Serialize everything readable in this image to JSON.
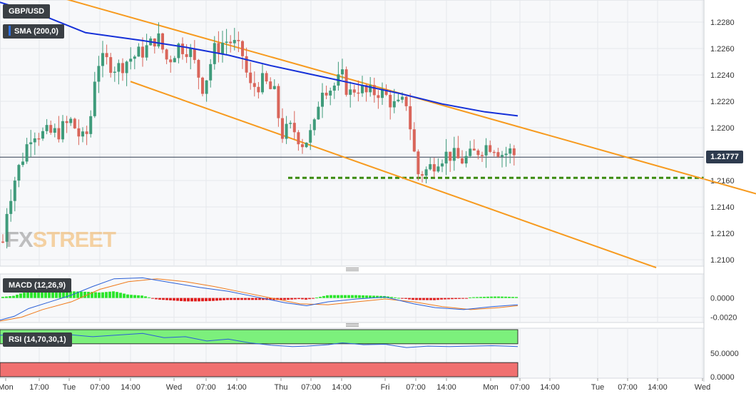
{
  "chart_data": [
    {
      "type": "candlestick",
      "symbol": "GBP/USD",
      "indicator_label": "SMA (200,0)",
      "current_price_label": "1.21777",
      "y_ticks": [
        "1.2280",
        "1.2260",
        "1.2240",
        "1.2220",
        "1.2200",
        "1.2180",
        "1.2160",
        "1.2140",
        "1.2120",
        "1.2100"
      ],
      "x_ticks": [
        "Mon",
        "17:00",
        "Tue",
        "07:00",
        "14:00",
        "Wed",
        "07:00",
        "14:00",
        "Thu",
        "07:00",
        "14:00",
        "Fri",
        "07:00",
        "14:00",
        "Mon",
        "07:00",
        "14:00",
        "Tue",
        "07:00",
        "14:00",
        "Wed"
      ],
      "ylim": [
        1.2093,
        1.2295
      ],
      "support_level": 1.2162,
      "channel_upper": [
        [
          10,
          1.231
        ],
        [
          1060,
          1.215
        ]
      ],
      "channel_lower": [
        [
          183,
          1.2235
        ],
        [
          920,
          1.2094
        ]
      ],
      "sma_200": [
        [
          0,
          1.2295
        ],
        [
          60,
          1.2285
        ],
        [
          120,
          1.2272
        ],
        [
          200,
          1.2266
        ],
        [
          260,
          1.2261
        ],
        [
          320,
          1.2255
        ],
        [
          380,
          1.2247
        ],
        [
          440,
          1.224
        ],
        [
          500,
          1.2233
        ],
        [
          560,
          1.2226
        ],
        [
          620,
          1.2218
        ],
        [
          680,
          1.2212
        ],
        [
          726,
          1.2209
        ]
      ],
      "close_path": [
        [
          2,
          1.2105
        ],
        [
          10,
          1.214
        ],
        [
          20,
          1.216
        ],
        [
          30,
          1.2175
        ],
        [
          45,
          1.2198
        ],
        [
          60,
          1.2195
        ],
        [
          80,
          1.2196
        ],
        [
          100,
          1.2205
        ],
        [
          115,
          1.219
        ],
        [
          125,
          1.2198
        ],
        [
          135,
          1.225
        ],
        [
          150,
          1.225
        ],
        [
          165,
          1.2245
        ],
        [
          180,
          1.2252
        ],
        [
          195,
          1.2256
        ],
        [
          210,
          1.2262
        ],
        [
          220,
          1.227
        ],
        [
          235,
          1.225
        ],
        [
          250,
          1.2262
        ],
        [
          265,
          1.226
        ],
        [
          285,
          1.223
        ],
        [
          300,
          1.2258
        ],
        [
          315,
          1.2266
        ],
        [
          325,
          1.2265
        ],
        [
          340,
          1.2255
        ],
        [
          350,
          1.223
        ],
        [
          370,
          1.2235
        ],
        [
          385,
          1.2225
        ],
        [
          395,
          1.2195
        ],
        [
          410,
          1.22
        ],
        [
          425,
          1.2188
        ],
        [
          440,
          1.2198
        ],
        [
          450,
          1.2232
        ],
        [
          465,
          1.223
        ],
        [
          480,
          1.2238
        ],
        [
          490,
          1.2225
        ],
        [
          500,
          1.2232
        ],
        [
          515,
          1.2225
        ],
        [
          530,
          1.2228
        ],
        [
          545,
          1.2222
        ],
        [
          555,
          1.2215
        ],
        [
          570,
          1.222
        ],
        [
          585,
          1.2165
        ],
        [
          600,
          1.2168
        ],
        [
          615,
          1.2178
        ],
        [
          630,
          1.218
        ],
        [
          645,
          1.2175
        ],
        [
          660,
          1.2178
        ],
        [
          675,
          1.2185
        ],
        [
          690,
          1.2188
        ],
        [
          705,
          1.218
        ],
        [
          715,
          1.2182
        ],
        [
          725,
          1.2178
        ]
      ]
    },
    {
      "type": "macd",
      "label": "MACD (12,26,9)",
      "y_ticks": [
        "0.0000",
        "-0.0020"
      ],
      "ylim": [
        -0.0024,
        0.0022
      ],
      "macd_line": [
        [
          0,
          -0.0023
        ],
        [
          20,
          -0.0019
        ],
        [
          40,
          -0.0011
        ],
        [
          70,
          -0.0004
        ],
        [
          100,
          0.0003
        ],
        [
          130,
          0.0012
        ],
        [
          160,
          0.002
        ],
        [
          200,
          0.0021
        ],
        [
          240,
          0.0016
        ],
        [
          280,
          0.0011
        ],
        [
          320,
          0.0007
        ],
        [
          360,
          0.0001
        ],
        [
          400,
          -0.0005
        ],
        [
          430,
          -0.0008
        ],
        [
          460,
          -0.0004
        ],
        [
          500,
          -0.0001
        ],
        [
          540,
          0.0001
        ],
        [
          580,
          -0.0006
        ],
        [
          610,
          -0.001
        ],
        [
          650,
          -0.0012
        ],
        [
          690,
          -0.0009
        ],
        [
          726,
          -0.0007
        ]
      ],
      "signal_line": [
        [
          0,
          -0.0024
        ],
        [
          30,
          -0.002
        ],
        [
          60,
          -0.0012
        ],
        [
          100,
          -0.0004
        ],
        [
          140,
          0.0009
        ],
        [
          180,
          0.0017
        ],
        [
          220,
          0.002
        ],
        [
          260,
          0.0017
        ],
        [
          300,
          0.0012
        ],
        [
          340,
          0.0006
        ],
        [
          380,
          0.0
        ],
        [
          420,
          -0.0006
        ],
        [
          460,
          -0.0007
        ],
        [
          500,
          -0.0004
        ],
        [
          540,
          -0.0001
        ],
        [
          580,
          -0.0004
        ],
        [
          620,
          -0.0009
        ],
        [
          660,
          -0.0012
        ],
        [
          700,
          -0.001
        ],
        [
          726,
          -0.0008
        ]
      ],
      "histogram_colors": {
        "positive": "#2ee62e",
        "negative": "#e02020"
      }
    },
    {
      "type": "rsi",
      "label": "RSI (14,70,30,1)",
      "y_ticks": [
        "50.0000",
        "0.0000"
      ],
      "ylim": [
        0,
        100
      ],
      "overbought": 70,
      "oversold": 30,
      "rsi_line": [
        [
          0,
          88
        ],
        [
          30,
          90
        ],
        [
          60,
          92
        ],
        [
          100,
          89
        ],
        [
          130,
          85
        ],
        [
          160,
          88
        ],
        [
          200,
          92
        ],
        [
          230,
          83
        ],
        [
          260,
          85
        ],
        [
          290,
          76
        ],
        [
          320,
          80
        ],
        [
          350,
          72
        ],
        [
          380,
          67
        ],
        [
          410,
          64
        ],
        [
          430,
          65
        ],
        [
          460,
          68
        ],
        [
          480,
          72
        ],
        [
          510,
          68
        ],
        [
          540,
          69
        ],
        [
          570,
          62
        ],
        [
          600,
          65
        ],
        [
          630,
          64
        ],
        [
          660,
          65
        ],
        [
          690,
          66
        ],
        [
          710,
          65
        ],
        [
          726,
          64
        ]
      ]
    }
  ],
  "colors": {
    "bull_candle": "#3f9b7b",
    "bear_candle": "#d9655a",
    "sma": "#1530d8",
    "channel": "#f79a1e",
    "support": "#3a8a0c",
    "macd": "#2a5fd6",
    "signal": "#f07a1a",
    "rsi": "#2a5fd6",
    "overbought": "#7cf07c",
    "oversold": "#f07070"
  },
  "watermark": "FXSTREET"
}
